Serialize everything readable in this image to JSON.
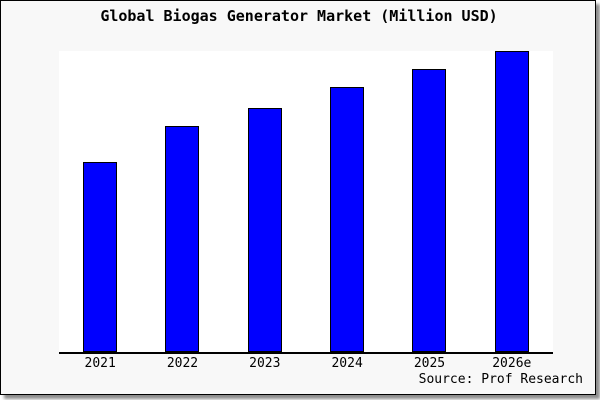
{
  "chart_data": {
    "type": "bar",
    "title": "Global Biogas Generator Market (Million USD)",
    "categories": [
      "2021",
      "2022",
      "2023",
      "2024",
      "2025",
      "2026e"
    ],
    "values": [
      63,
      75,
      81,
      88,
      94,
      100
    ],
    "xlabel": "",
    "ylabel": "",
    "ylim": [
      0,
      100
    ],
    "y_axis_visible": false,
    "gridlines": false,
    "legend": false,
    "bar_color": "#0000ff",
    "bar_edge_color": "#000000"
  },
  "source_text": "Source: Prof Research",
  "colors": {
    "frame_background": "#f8f8f8",
    "plot_background": "#ffffff",
    "axis": "#000000",
    "text": "#000000",
    "shadow": "#999999"
  }
}
